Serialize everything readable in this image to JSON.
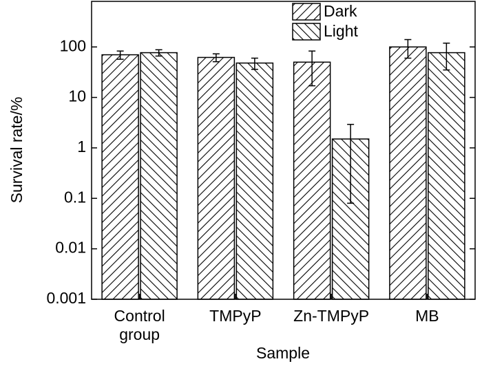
{
  "chart_data": {
    "type": "bar",
    "xlabel": "Sample",
    "ylabel": "Survival rate/%",
    "categories": [
      "Control group",
      "TMPyP",
      "Zn-TMPyP",
      "MB"
    ],
    "series": [
      {
        "name": "Dark",
        "color": "#000000",
        "hatch": "/",
        "values": [
          70,
          62,
          50,
          100
        ],
        "errors": [
          13,
          11,
          33,
          40
        ]
      },
      {
        "name": "Light",
        "color": "#000000",
        "hatch": "\\",
        "values": [
          77,
          48,
          1.5,
          77
        ],
        "errors": [
          11,
          12,
          1.42,
          42
        ]
      }
    ],
    "log_y": true,
    "ylim": [
      0.001,
      800
    ],
    "yticks": [
      0.001,
      0.01,
      0.1,
      1,
      10,
      100
    ],
    "legend": "top"
  }
}
